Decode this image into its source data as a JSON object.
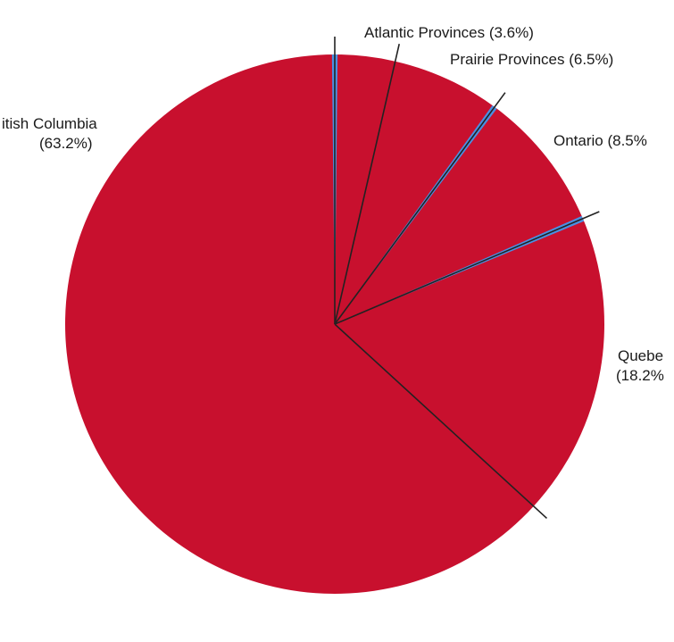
{
  "chart_data": {
    "type": "pie",
    "title": "",
    "colors": {
      "slice": "#c8102e",
      "gap": "#4a90e2",
      "divider": "#222222"
    },
    "slices": [
      {
        "name": "Atlantic Provinces",
        "value": 3.6,
        "label_line1": "Atlantic Provinces (3.6%)",
        "label_line2": ""
      },
      {
        "name": "Prairie Provinces",
        "value": 6.5,
        "label_line1": "Prairie Provinces (6.5%)",
        "label_line2": ""
      },
      {
        "name": "Ontario",
        "value": 8.5,
        "label_line1": "Ontario (8.5%",
        "label_line2": ""
      },
      {
        "name": "Quebec",
        "value": 18.2,
        "label_line1": "Quebe",
        "label_line2": "(18.2%"
      },
      {
        "name": "British Columbia",
        "value": 63.2,
        "label_line1": "itish Columbia",
        "label_line2": "(63.2%)"
      }
    ]
  }
}
